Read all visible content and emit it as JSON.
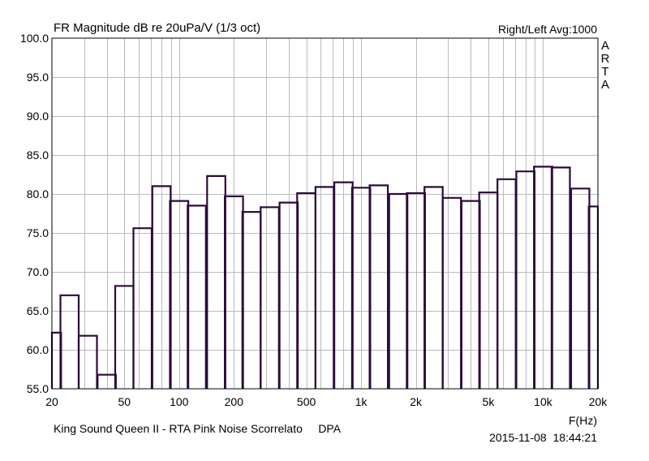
{
  "chart_data": {
    "type": "bar",
    "title": "FR Magnitude dB re 20uPa/V (1/3 oct)",
    "top_right_label": "Right/Left  Avg:1000",
    "side_label": [
      "A",
      "R",
      "T",
      "A"
    ],
    "xlabel": "F(Hz)",
    "ylabel": "",
    "footer_left": "King Sound Queen II - RTA Pink Noise Scorrelato     DPA",
    "footer_right": "2015-11-08  18:44:21",
    "xscale": "log",
    "xlim": [
      20,
      20000
    ],
    "ylim": [
      55,
      100
    ],
    "grid": true,
    "x_ticks": [
      {
        "value": 20,
        "label": "20"
      },
      {
        "value": 50,
        "label": "50"
      },
      {
        "value": 100,
        "label": "100"
      },
      {
        "value": 200,
        "label": "200"
      },
      {
        "value": 500,
        "label": "500"
      },
      {
        "value": 1000,
        "label": "1k"
      },
      {
        "value": 2000,
        "label": "2k"
      },
      {
        "value": 5000,
        "label": "5k"
      },
      {
        "value": 10000,
        "label": "10k"
      },
      {
        "value": 20000,
        "label": "20k"
      }
    ],
    "y_ticks": [
      {
        "value": 55,
        "label": "55.0"
      },
      {
        "value": 60,
        "label": "60.0"
      },
      {
        "value": 65,
        "label": "65.0"
      },
      {
        "value": 70,
        "label": "70.0"
      },
      {
        "value": 75,
        "label": "75.0"
      },
      {
        "value": 80,
        "label": "80.0"
      },
      {
        "value": 85,
        "label": "85.0"
      },
      {
        "value": 90,
        "label": "90.0"
      },
      {
        "value": 95,
        "label": "95.0"
      },
      {
        "value": 100,
        "label": "100.0"
      }
    ],
    "bar_color": "#2d0a3a",
    "grid_color": "#bbbbbb",
    "categories": [
      20,
      25,
      31.5,
      40,
      50,
      63,
      80,
      100,
      125,
      160,
      200,
      250,
      315,
      400,
      500,
      630,
      800,
      1000,
      1250,
      1600,
      2000,
      2500,
      3150,
      4000,
      5000,
      6300,
      8000,
      10000,
      12500,
      16000,
      20000
    ],
    "values": [
      62.2,
      67.0,
      61.8,
      56.8,
      68.2,
      75.6,
      81.0,
      79.1,
      78.5,
      82.3,
      79.7,
      77.7,
      78.3,
      78.9,
      80.1,
      80.9,
      81.5,
      80.8,
      81.1,
      80.0,
      80.1,
      80.9,
      79.5,
      79.1,
      80.2,
      81.9,
      82.9,
      83.5,
      83.4,
      80.7,
      78.4
    ]
  }
}
